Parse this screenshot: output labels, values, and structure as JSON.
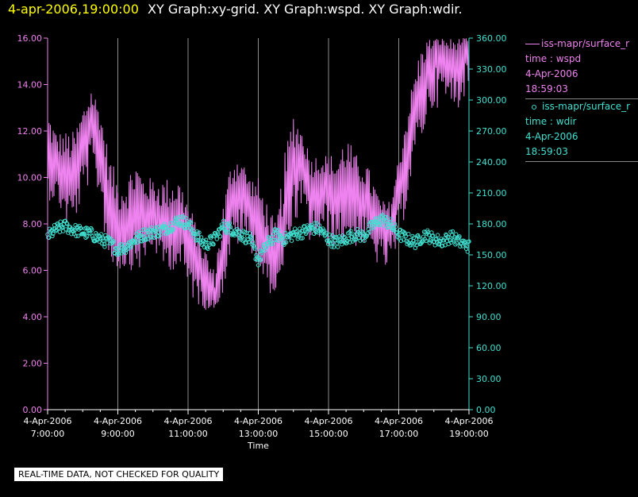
{
  "header": {
    "timestamp": "4-apr-2006,19:00:00",
    "title": "XY Graph:xy-grid.  XY Graph:wspd.  XY Graph:wdir."
  },
  "legend": [
    {
      "source": "iss-mapr/surface_r",
      "param": "time : wspd",
      "date": "4-Apr-2006",
      "time": "18:59:03",
      "color": "#ee82ee"
    },
    {
      "source": "iss-mapr/surface_r",
      "param": "time : wdir",
      "date": "4-Apr-2006",
      "time": "18:59:03",
      "color": "#40e0d0"
    }
  ],
  "disclaimer": "REAL-TIME DATA, NOT CHECKED FOR QUALITY",
  "chart_data": {
    "type": "line",
    "xlabel": "Time",
    "x_range_hours": [
      7,
      19
    ],
    "x_ticks": [
      {
        "date": "4-Apr-2006",
        "time": "7:00:00"
      },
      {
        "date": "4-Apr-2006",
        "time": "9:00:00"
      },
      {
        "date": "4-Apr-2006",
        "time": "11:00:00"
      },
      {
        "date": "4-Apr-2006",
        "time": "13:00:00"
      },
      {
        "date": "4-Apr-2006",
        "time": "15:00:00"
      },
      {
        "date": "4-Apr-2006",
        "time": "17:00:00"
      },
      {
        "date": "4-Apr-2006",
        "time": "19:00:00"
      }
    ],
    "y_left": {
      "min": 0,
      "max": 16,
      "ticks": [
        "0.00",
        "2.00",
        "4.00",
        "6.00",
        "8.00",
        "10.00",
        "12.00",
        "14.00",
        "16.00"
      ],
      "color": "#ee82ee"
    },
    "y_right": {
      "min": 0,
      "max": 360,
      "ticks": [
        "0.00",
        "30.00",
        "60.00",
        "90.00",
        "120.00",
        "150.00",
        "180.00",
        "210.00",
        "240.00",
        "270.00",
        "300.00",
        "330.00",
        "360.00"
      ],
      "color": "#40e0d0"
    },
    "grid": "vertical",
    "series": [
      {
        "name": "wspd",
        "style": "line",
        "axis": "left",
        "color": "#ee82ee",
        "x_hours": [
          7.0,
          7.25,
          7.5,
          7.75,
          8.0,
          8.25,
          8.5,
          8.75,
          9.0,
          9.25,
          9.5,
          9.75,
          10.0,
          10.25,
          10.5,
          10.75,
          11.0,
          11.25,
          11.5,
          11.75,
          12.0,
          12.25,
          12.5,
          12.75,
          13.0,
          13.25,
          13.5,
          13.75,
          14.0,
          14.25,
          14.5,
          14.75,
          15.0,
          15.25,
          15.5,
          15.75,
          16.0,
          16.25,
          16.5,
          16.75,
          17.0,
          17.25,
          17.5,
          17.75,
          18.0,
          18.25,
          18.5,
          18.75,
          19.0
        ],
        "values": [
          11.0,
          10.5,
          10.2,
          10.0,
          11.5,
          12.5,
          11.5,
          9.0,
          7.8,
          8.0,
          8.2,
          8.5,
          8.5,
          8.0,
          8.0,
          8.2,
          7.5,
          6.5,
          5.5,
          4.8,
          6.5,
          9.0,
          9.5,
          9.0,
          8.0,
          7.0,
          6.0,
          8.0,
          10.5,
          11.0,
          9.5,
          9.8,
          9.8,
          9.0,
          9.5,
          9.2,
          9.0,
          8.5,
          8.0,
          7.8,
          9.5,
          11.5,
          13.0,
          14.5,
          15.5,
          15.5,
          15.0,
          15.5,
          15.5
        ],
        "ranges": [
          [
            9,
            13
          ],
          [
            9,
            12
          ],
          [
            8,
            12
          ],
          [
            8,
            12
          ],
          [
            9,
            13
          ],
          [
            10,
            14
          ],
          [
            9,
            13
          ],
          [
            6,
            11
          ],
          [
            6,
            10
          ],
          [
            6,
            10
          ],
          [
            6,
            11
          ],
          [
            6,
            10
          ],
          [
            7,
            10
          ],
          [
            6,
            10
          ],
          [
            6,
            10
          ],
          [
            6,
            10
          ],
          [
            5,
            9
          ],
          [
            4.5,
            8
          ],
          [
            4.3,
            7
          ],
          [
            4.3,
            6
          ],
          [
            5,
            9
          ],
          [
            7,
            11
          ],
          [
            7,
            11
          ],
          [
            7,
            10
          ],
          [
            6,
            10
          ],
          [
            5,
            9
          ],
          [
            5,
            8
          ],
          [
            6,
            11
          ],
          [
            8,
            13
          ],
          [
            8,
            12
          ],
          [
            7,
            11
          ],
          [
            7,
            11
          ],
          [
            7,
            11
          ],
          [
            7,
            11
          ],
          [
            7,
            12
          ],
          [
            7,
            11
          ],
          [
            7,
            11
          ],
          [
            6.5,
            10
          ],
          [
            6,
            9
          ],
          [
            6,
            9
          ],
          [
            7,
            11
          ],
          [
            9,
            13
          ],
          [
            11,
            15
          ],
          [
            12,
            16
          ],
          [
            13,
            16
          ],
          [
            13,
            16
          ],
          [
            13,
            16
          ],
          [
            13,
            16
          ],
          [
            14,
            16
          ]
        ]
      },
      {
        "name": "wdir",
        "style": "markers",
        "axis": "right",
        "color": "#40e0d0",
        "x_hours": [
          7.0,
          7.25,
          7.5,
          7.75,
          8.0,
          8.25,
          8.5,
          8.75,
          9.0,
          9.25,
          9.5,
          9.75,
          10.0,
          10.25,
          10.5,
          10.75,
          11.0,
          11.25,
          11.5,
          11.75,
          12.0,
          12.25,
          12.5,
          12.75,
          13.0,
          13.25,
          13.5,
          13.75,
          14.0,
          14.25,
          14.5,
          14.75,
          15.0,
          15.25,
          15.5,
          15.75,
          16.0,
          16.25,
          16.5,
          16.75,
          17.0,
          17.25,
          17.5,
          17.75,
          18.0,
          18.25,
          18.5,
          18.75,
          19.0
        ],
        "values": [
          168,
          175,
          178,
          174,
          172,
          170,
          165,
          162,
          155,
          158,
          165,
          170,
          172,
          174,
          178,
          184,
          180,
          168,
          160,
          165,
          178,
          175,
          170,
          165,
          145,
          160,
          170,
          165,
          170,
          172,
          176,
          175,
          165,
          162,
          166,
          170,
          168,
          178,
          185,
          180,
          170,
          165,
          162,
          170,
          165,
          163,
          168,
          162,
          158
        ]
      }
    ]
  }
}
